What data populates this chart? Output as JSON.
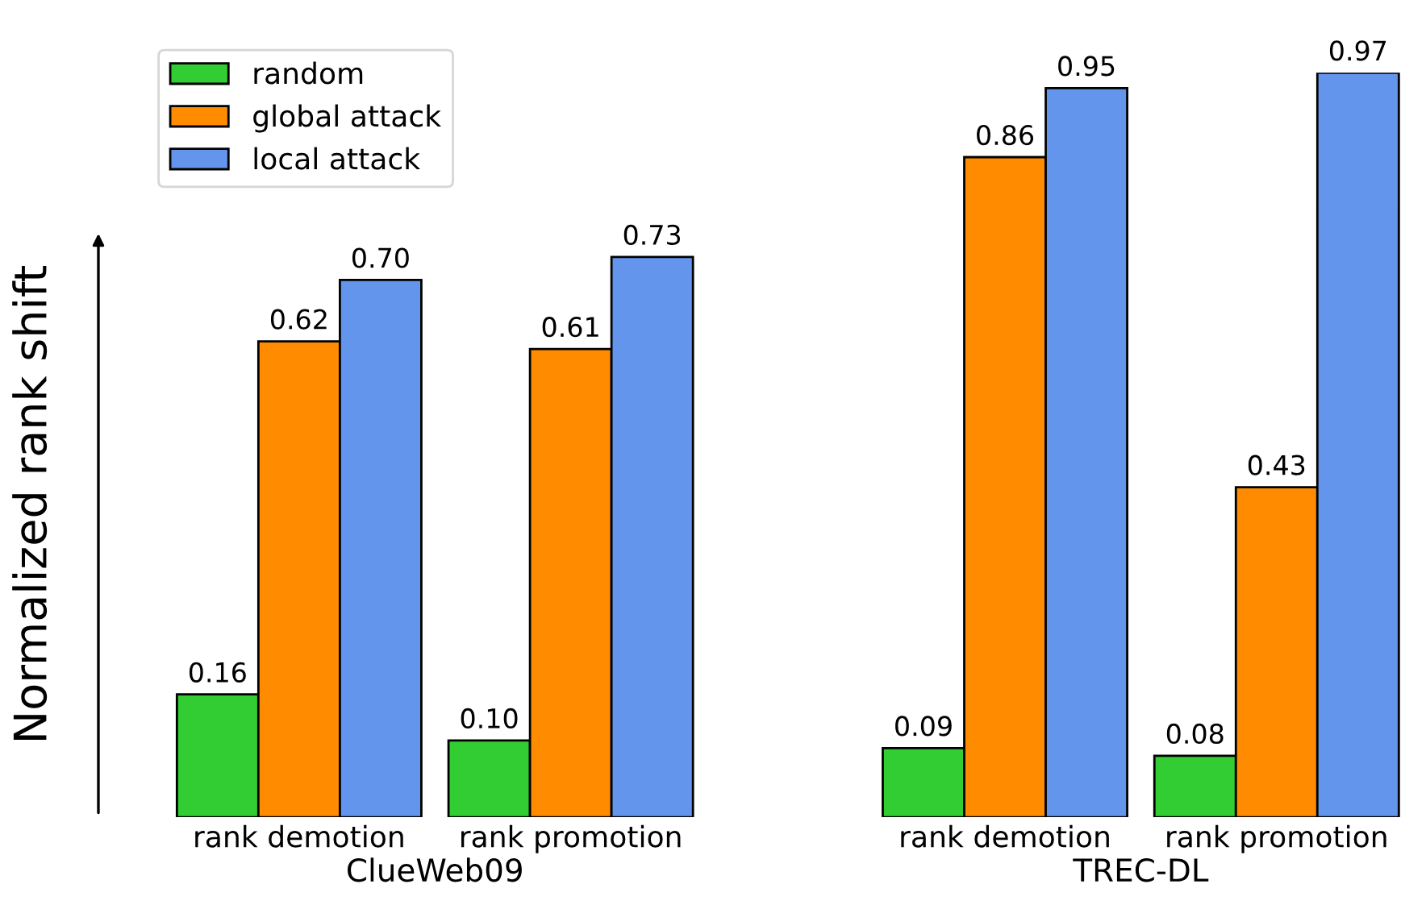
{
  "chart_data": [
    {
      "type": "bar",
      "xlabel": "ClueWeb09",
      "ylabel": "Normalized rank shift",
      "categories": [
        "rank demotion",
        "rank promotion"
      ],
      "tick_labels": "x",
      "legend": "top left",
      "grid": false,
      "series": [
        {
          "name": "random",
          "color": "#32cd32",
          "values": [
            0.16,
            0.1
          ],
          "value_labels": [
            "0.16",
            "0.10"
          ]
        },
        {
          "name": "global attack",
          "color": "#ff8c00",
          "values": [
            0.62,
            0.61
          ],
          "value_labels": [
            "0.62",
            "0.61"
          ]
        },
        {
          "name": "local attack",
          "color": "#6495ed",
          "values": [
            0.7,
            0.73
          ],
          "value_labels": [
            "0.70",
            "0.73"
          ]
        }
      ]
    },
    {
      "type": "bar",
      "xlabel": "TREC-DL",
      "categories": [
        "rank demotion",
        "rank promotion"
      ],
      "tick_labels": "x",
      "legend": false,
      "grid": false,
      "series": [
        {
          "color": "#32cd32",
          "values": [
            0.09,
            0.08
          ],
          "value_labels": [
            "0.09",
            "0.08"
          ]
        },
        {
          "color": "#ff8c00",
          "values": [
            0.86,
            0.43
          ],
          "value_labels": [
            "0.86",
            "0.43"
          ]
        },
        {
          "color": "#6495ed",
          "values": [
            0.95,
            0.97
          ],
          "value_labels": [
            "0.95",
            "0.97"
          ]
        }
      ]
    }
  ]
}
